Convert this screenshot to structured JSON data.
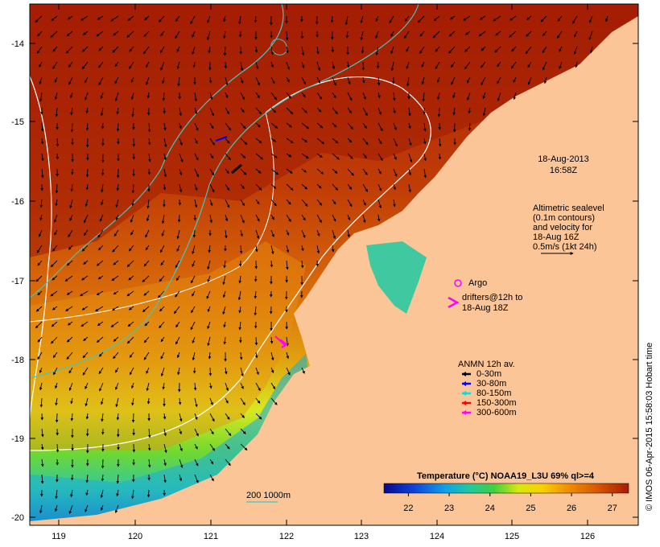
{
  "timestamp": {
    "date": "18-Aug-2013",
    "time": "16:58Z"
  },
  "altimetry": {
    "lines": [
      "Altimetric sealevel",
      "(0.1m contours)",
      "and velocity for",
      "18-Aug 16Z",
      "0.5m/s (1kt 24h)"
    ]
  },
  "argo_label": "Argo",
  "drifters": {
    "line1": "drifters@12h to",
    "line2": "18-Aug 18Z"
  },
  "anmn": {
    "title": "ANMN 12h av.",
    "items": [
      {
        "label": "0-30m",
        "color": "#000000"
      },
      {
        "label": "30-80m",
        "color": "#0000ff"
      },
      {
        "label": "80-150m",
        "color": "#00e0e0"
      },
      {
        "label": "150-300m",
        "color": "#ff0000"
      },
      {
        "label": "300-600m",
        "color": "#ff00ff"
      }
    ]
  },
  "colorbar": {
    "title": "Temperature (°C) NOAA19_L3U 69% ql>=4",
    "ticks": [
      "22",
      "23",
      "24",
      "25",
      "26",
      "27"
    ],
    "vmin": 21.4,
    "vmax": 27.4
  },
  "bathy_label": "200  1000m",
  "credit": "© IMOS 06-Apr-2015 15:58:03 Hobart time",
  "axes": {
    "lat_ticks": [
      "-14",
      "-15",
      "-16",
      "-17",
      "-18",
      "-19",
      "-20"
    ],
    "lon_ticks": [
      "119",
      "120",
      "121",
      "122",
      "123",
      "124",
      "125",
      "126"
    ]
  },
  "colors": {
    "land": "#fbc597",
    "warm": "#b22a06",
    "argo": "#ff00ff",
    "contour_teal": "#40c8c0",
    "contour_white": "#ffffff"
  }
}
